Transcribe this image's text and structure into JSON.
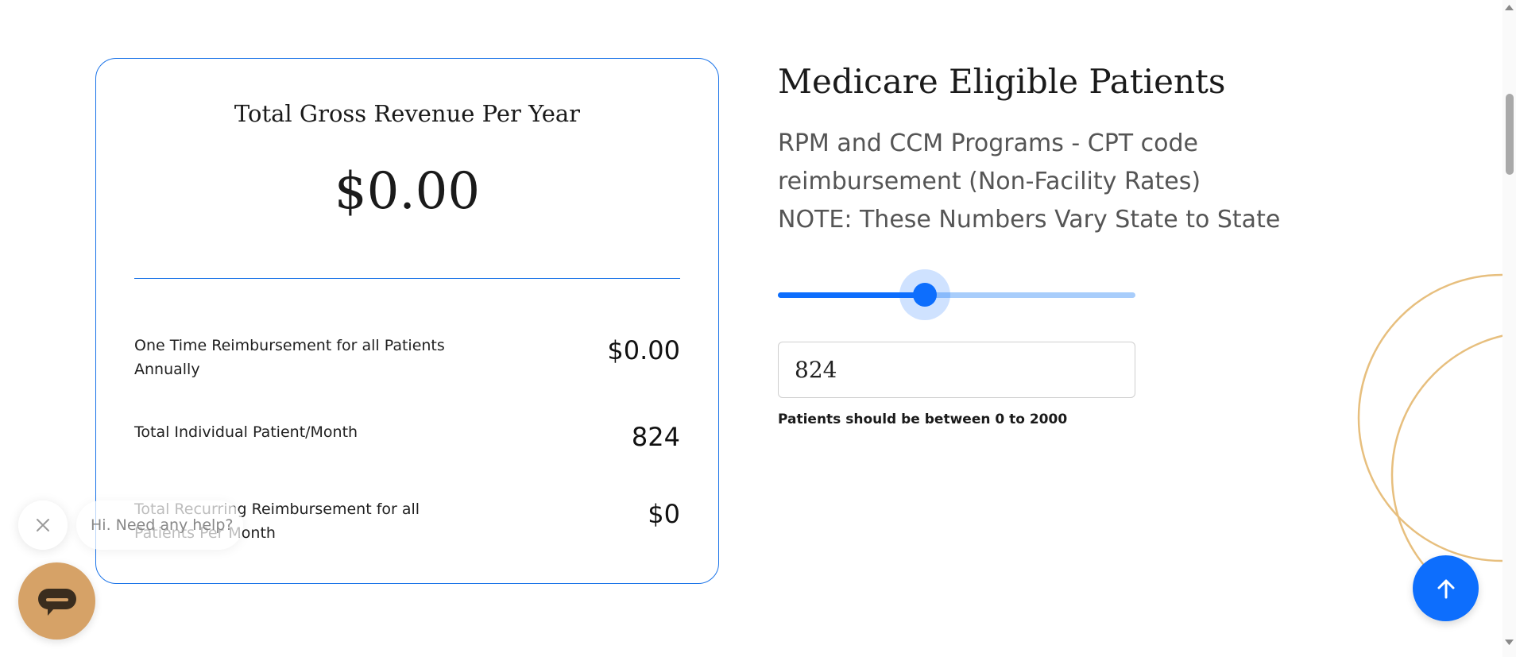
{
  "summary_card": {
    "title": "Total Gross Revenue Per Year",
    "total": "$0.00",
    "rows": [
      {
        "label": "One Time Reimbursement for all Patients Annually",
        "value": "$0.00"
      },
      {
        "label": "Total Individual Patient/Month",
        "value": "824"
      },
      {
        "label": "Total Recurring Reimbursement for all Patients Per Month",
        "value": "$0"
      }
    ]
  },
  "patients_section": {
    "heading": "Medicare Eligible Patients",
    "subtitle_line1": "RPM and CCM Programs - CPT code",
    "subtitle_line2": "reimbursement (Non-Facility Rates)",
    "subtitle_line3": "NOTE: These Numbers Vary State to State",
    "slider": {
      "min": 0,
      "max": 2000,
      "value": 824
    },
    "input_value": "824",
    "hint": "Patients should be between 0 to 2000"
  },
  "chat_widget": {
    "message": "Hi. Need any help?",
    "close_icon": "close-icon",
    "launcher_icon": "chat-bubble-icon"
  },
  "scroll_top_icon": "arrow-up-icon",
  "colors": {
    "accent": "#0d6efd",
    "card_border": "#1a73e8",
    "chat_launcher": "#d6a267",
    "decor_ring": "#e7bf7e"
  }
}
